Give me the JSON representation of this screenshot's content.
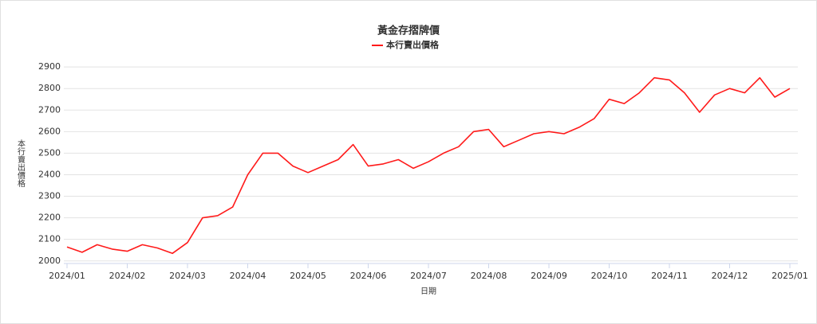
{
  "chart_data": {
    "type": "line",
    "title": "黃金存摺牌價",
    "x_label": "日期",
    "y_label": "本行賣出價格",
    "categories": [
      "2024/01",
      null,
      null,
      null,
      "2024/02",
      null,
      null,
      null,
      "2024/03",
      null,
      null,
      null,
      "2024/04",
      null,
      null,
      null,
      "2024/05",
      null,
      null,
      null,
      "2024/06",
      null,
      null,
      null,
      "2024/07",
      null,
      null,
      null,
      "2024/08",
      null,
      null,
      null,
      "2024/09",
      null,
      null,
      null,
      "2024/10",
      null,
      null,
      null,
      "2024/11",
      null,
      null,
      null,
      "2024/12",
      null,
      null,
      null,
      "2025/01"
    ],
    "series": [
      {
        "name": "本行賣出價格",
        "color": "#ff1a1a",
        "values": [
          2065,
          2040,
          2075,
          2055,
          2045,
          2075,
          2060,
          2035,
          2085,
          2200,
          2210,
          2250,
          2400,
          2500,
          2500,
          2440,
          2410,
          2440,
          2470,
          2540,
          2440,
          2450,
          2470,
          2430,
          2460,
          2500,
          2530,
          2600,
          2610,
          2530,
          2560,
          2590,
          2600,
          2590,
          2620,
          2660,
          2750,
          2730,
          2780,
          2850,
          2840,
          2780,
          2690,
          2770,
          2800,
          2780,
          2850,
          2760,
          2800
        ]
      }
    ],
    "ylim": [
      1988,
      2930
    ],
    "yticks": [
      2000,
      2100,
      2200,
      2300,
      2400,
      2500,
      2600,
      2700,
      2800,
      2900
    ],
    "grid": true
  }
}
